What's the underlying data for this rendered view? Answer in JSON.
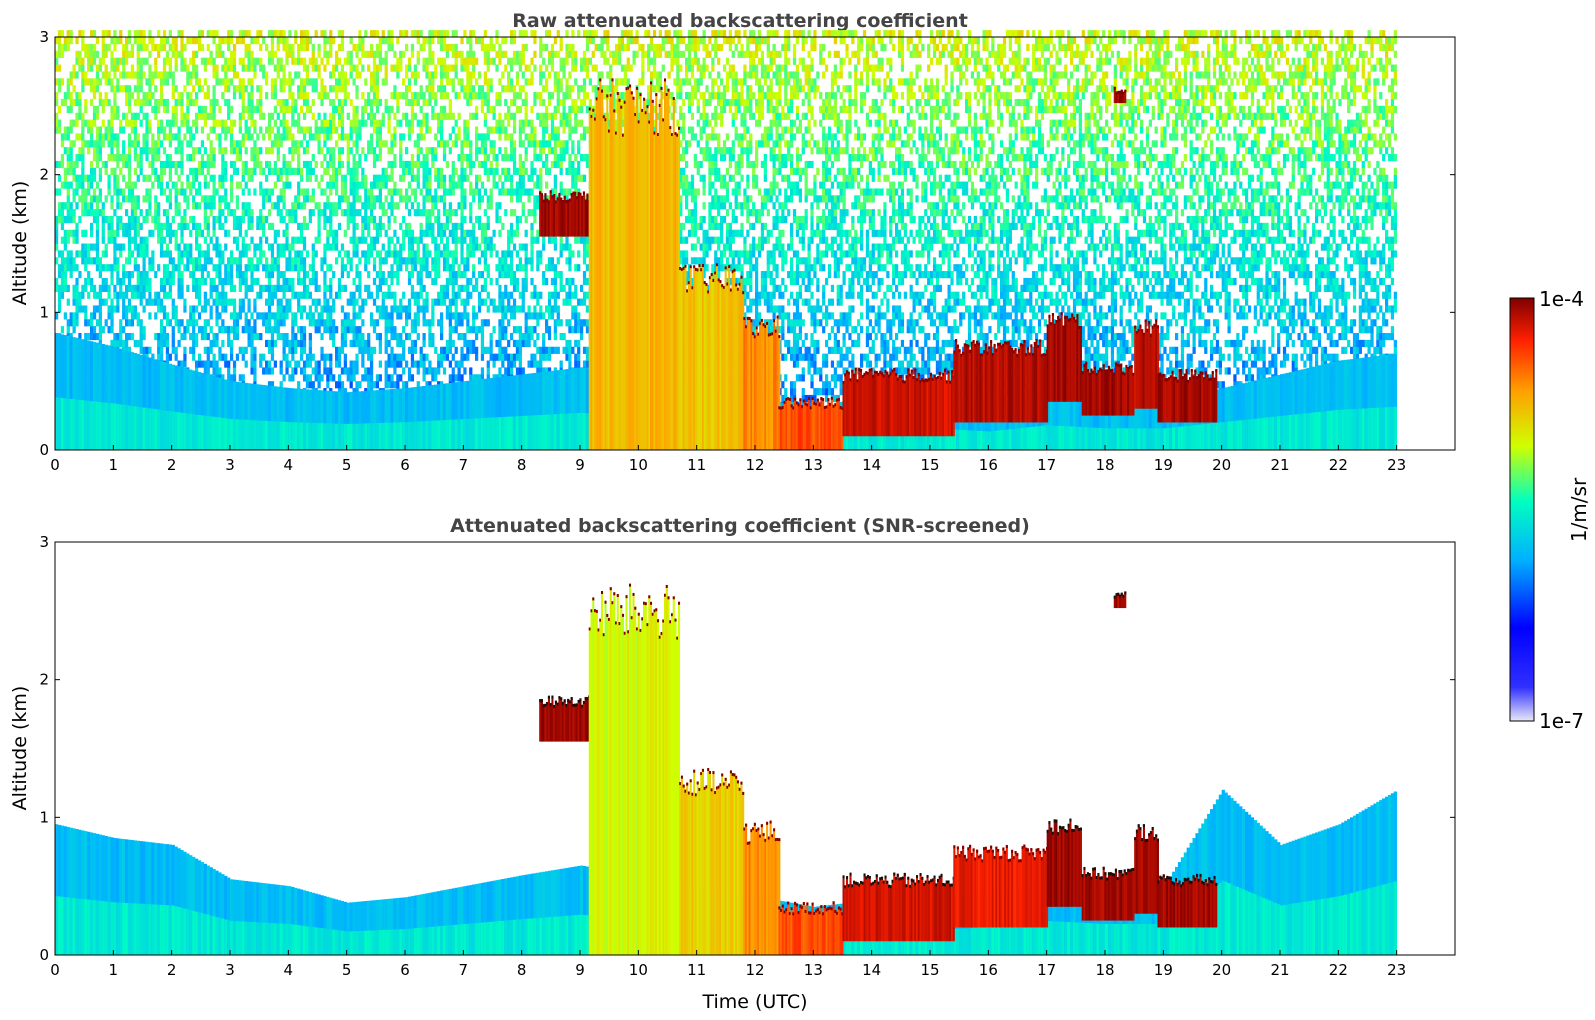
{
  "chart_data": [
    {
      "type": "heatmap",
      "title": "Raw attenuated backscattering coefficient",
      "xlabel": "",
      "ylabel": "Altitude (km)",
      "xlim": [
        0,
        24
      ],
      "ylim": [
        0,
        3
      ],
      "x_ticks": [
        "0",
        "1",
        "2",
        "3",
        "4",
        "5",
        "6",
        "7",
        "8",
        "9",
        "10",
        "11",
        "12",
        "13",
        "14",
        "15",
        "16",
        "17",
        "18",
        "19",
        "20",
        "21",
        "22",
        "23"
      ],
      "y_ticks": [
        "0",
        "1",
        "2",
        "3"
      ],
      "data_end_hour": 23,
      "noise": "high",
      "boundary_layer_top_km": [
        [
          0,
          0.85
        ],
        [
          1,
          0.75
        ],
        [
          2,
          0.62
        ],
        [
          3,
          0.5
        ],
        [
          4,
          0.45
        ],
        [
          5,
          0.42
        ],
        [
          6,
          0.45
        ],
        [
          7,
          0.5
        ],
        [
          8,
          0.55
        ],
        [
          9,
          0.6
        ],
        [
          13,
          0.3
        ],
        [
          14,
          0.35
        ],
        [
          15,
          0.35
        ],
        [
          16,
          0.3
        ],
        [
          17,
          0.4
        ],
        [
          18,
          0.35
        ],
        [
          19,
          0.35
        ],
        [
          20,
          0.45
        ],
        [
          21,
          0.55
        ],
        [
          22,
          0.65
        ],
        [
          23,
          0.7
        ]
      ],
      "cloud_segments": [
        {
          "t0": 8.3,
          "t1": 9.15,
          "top": 1.85,
          "bottom": 1.55,
          "level": 1.0
        },
        {
          "t0": 9.15,
          "t1": 10.7,
          "top": 2.5,
          "bottom": 0.0,
          "level": 0.72
        },
        {
          "t0": 10.7,
          "t1": 11.8,
          "top": 1.25,
          "bottom": 0.0,
          "level": 0.7
        },
        {
          "t0": 11.8,
          "t1": 12.4,
          "top": 0.9,
          "bottom": 0.0,
          "level": 0.78
        },
        {
          "t0": 12.4,
          "t1": 13.5,
          "top": 0.35,
          "bottom": 0.0,
          "level": 0.85
        },
        {
          "t0": 13.5,
          "t1": 15.4,
          "top": 0.55,
          "bottom": 0.1,
          "level": 0.95
        },
        {
          "t0": 15.4,
          "t1": 17.0,
          "top": 0.75,
          "bottom": 0.2,
          "level": 0.98
        },
        {
          "t0": 17.0,
          "t1": 17.6,
          "top": 0.95,
          "bottom": 0.35,
          "level": 1.0
        },
        {
          "t0": 17.6,
          "t1": 18.5,
          "top": 0.6,
          "bottom": 0.25,
          "level": 1.0
        },
        {
          "t0": 18.5,
          "t1": 18.9,
          "top": 0.9,
          "bottom": 0.3,
          "level": 0.98
        },
        {
          "t0": 18.9,
          "t1": 19.9,
          "top": 0.55,
          "bottom": 0.2,
          "level": 1.0
        },
        {
          "t0": 18.15,
          "t1": 18.35,
          "top": 2.62,
          "bottom": 2.52,
          "level": 1.0
        }
      ]
    },
    {
      "type": "heatmap",
      "title": "Attenuated backscattering coefficient (SNR-screened)",
      "xlabel": "Time (UTC)",
      "ylabel": "Altitude (km)",
      "xlim": [
        0,
        24
      ],
      "ylim": [
        0,
        3
      ],
      "x_ticks": [
        "0",
        "1",
        "2",
        "3",
        "4",
        "5",
        "6",
        "7",
        "8",
        "9",
        "10",
        "11",
        "12",
        "13",
        "14",
        "15",
        "16",
        "17",
        "18",
        "19",
        "20",
        "21",
        "22",
        "23"
      ],
      "y_ticks": [
        "0",
        "1",
        "2",
        "3"
      ],
      "data_end_hour": 23,
      "noise": "none",
      "boundary_layer_top_km": [
        [
          0,
          0.95
        ],
        [
          1,
          0.85
        ],
        [
          2,
          0.8
        ],
        [
          3,
          0.55
        ],
        [
          4,
          0.5
        ],
        [
          5,
          0.38
        ],
        [
          6,
          0.42
        ],
        [
          7,
          0.5
        ],
        [
          8,
          0.58
        ],
        [
          9,
          0.65
        ],
        [
          13,
          0.35
        ],
        [
          14,
          0.4
        ],
        [
          15,
          0.4
        ],
        [
          16,
          0.45
        ],
        [
          17,
          0.55
        ],
        [
          18,
          0.5
        ],
        [
          19,
          0.5
        ],
        [
          20,
          1.2
        ],
        [
          21,
          0.8
        ],
        [
          22,
          0.95
        ],
        [
          23,
          1.2
        ]
      ],
      "cloud_segments": [
        {
          "t0": 8.3,
          "t1": 9.15,
          "top": 1.85,
          "bottom": 1.55,
          "level": 1.0
        },
        {
          "t0": 9.15,
          "t1": 10.7,
          "top": 2.5,
          "bottom": 0.0,
          "level": 0.62
        },
        {
          "t0": 10.7,
          "t1": 11.8,
          "top": 1.25,
          "bottom": 0.0,
          "level": 0.68
        },
        {
          "t0": 11.8,
          "t1": 12.4,
          "top": 0.9,
          "bottom": 0.0,
          "level": 0.78
        },
        {
          "t0": 12.4,
          "t1": 13.5,
          "top": 0.35,
          "bottom": 0.0,
          "level": 0.85
        },
        {
          "t0": 13.5,
          "t1": 15.4,
          "top": 0.55,
          "bottom": 0.1,
          "level": 0.95
        },
        {
          "t0": 15.4,
          "t1": 17.0,
          "top": 0.75,
          "bottom": 0.2,
          "level": 0.92
        },
        {
          "t0": 17.0,
          "t1": 17.6,
          "top": 0.95,
          "bottom": 0.35,
          "level": 1.0
        },
        {
          "t0": 17.6,
          "t1": 18.5,
          "top": 0.6,
          "bottom": 0.25,
          "level": 1.0
        },
        {
          "t0": 18.5,
          "t1": 18.9,
          "top": 0.9,
          "bottom": 0.3,
          "level": 1.0
        },
        {
          "t0": 18.9,
          "t1": 19.9,
          "top": 0.55,
          "bottom": 0.2,
          "level": 1.0
        },
        {
          "t0": 18.15,
          "t1": 18.35,
          "top": 2.62,
          "bottom": 2.52,
          "level": 1.0
        }
      ]
    }
  ],
  "colorbar": {
    "top_label": "1e-4",
    "bottom_label": "1e-7",
    "unit_label": "1/m/sr",
    "scale": "log",
    "range": [
      1e-07,
      0.0001
    ],
    "colormap": [
      "#e8e8f8",
      "#0000ff",
      "#00b0ff",
      "#00ffc0",
      "#d0ff00",
      "#ffa000",
      "#ff2000",
      "#800000"
    ]
  }
}
